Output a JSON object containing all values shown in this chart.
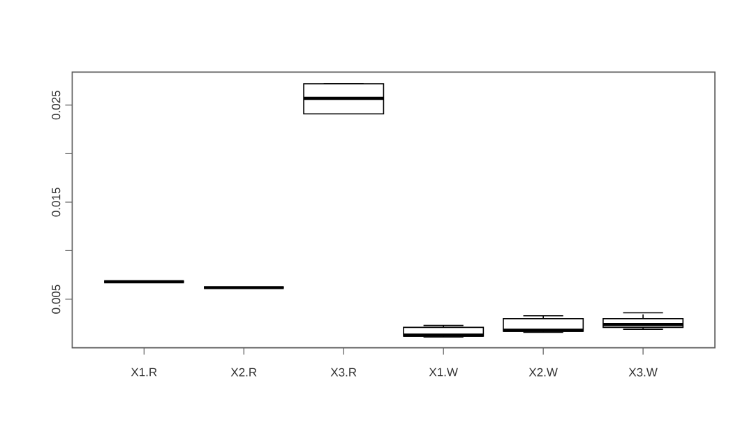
{
  "chart_data": {
    "type": "box",
    "categories": [
      "X1.R",
      "X2.R",
      "X3.R",
      "X1.W",
      "X2.W",
      "X3.W"
    ],
    "boxes": [
      {
        "low": 0.0068,
        "q1": 0.0068,
        "median": 0.0068,
        "q3": 0.0068,
        "high": 0.0068
      },
      {
        "low": 0.0062,
        "q1": 0.0062,
        "median": 0.0062,
        "q3": 0.0062,
        "high": 0.0062
      },
      {
        "low": 0.0241,
        "q1": 0.0241,
        "median": 0.0257,
        "q3": 0.0272,
        "high": 0.0272
      },
      {
        "low": 0.0011,
        "q1": 0.0012,
        "median": 0.0013,
        "q3": 0.0021,
        "high": 0.0023
      },
      {
        "low": 0.0016,
        "q1": 0.0017,
        "median": 0.0018,
        "q3": 0.003,
        "high": 0.0033
      },
      {
        "low": 0.0019,
        "q1": 0.0021,
        "median": 0.0024,
        "q3": 0.003,
        "high": 0.0036
      }
    ],
    "color": "#000000",
    "ylim": [
      0.0,
      0.0284
    ],
    "yticks": [
      0.005,
      {
        "value": 0.01,
        "label": null
      },
      0.015,
      {
        "value": 0.02,
        "label": null
      },
      0.025
    ]
  }
}
